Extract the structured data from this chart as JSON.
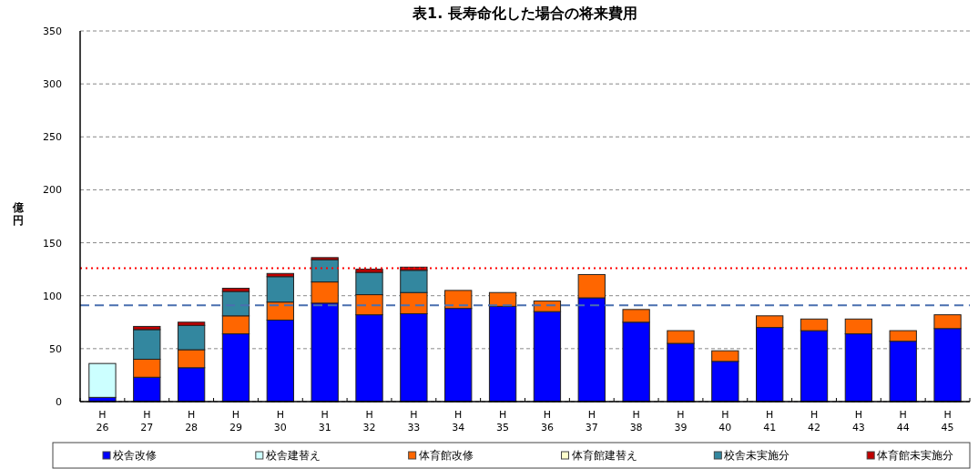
{
  "chart_data": {
    "type": "bar",
    "stacked": true,
    "title": "表1. 長寿命化した場合の将来費用",
    "ylabel": "億円",
    "categories": [
      "H\n26",
      "H\n27",
      "H\n28",
      "H\n29",
      "H\n30",
      "H\n31",
      "H\n32",
      "H\n33",
      "H\n34",
      "H\n35",
      "H\n36",
      "H\n37",
      "H\n38",
      "H\n39",
      "H\n40",
      "H\n41",
      "H\n42",
      "H\n43",
      "H\n44",
      "H\n45"
    ],
    "series": [
      {
        "name": "校舎改修",
        "color": "#0000ff",
        "values": [
          4,
          23,
          32,
          64,
          77,
          93,
          82,
          83,
          88,
          90,
          85,
          98,
          75,
          55,
          38,
          70,
          67,
          64,
          57,
          69
        ]
      },
      {
        "name": "校舎建替え",
        "color": "#ccffff",
        "values": [
          32,
          null,
          null,
          null,
          null,
          null,
          null,
          null,
          null,
          null,
          null,
          null,
          null,
          null,
          null,
          null,
          null,
          null,
          null,
          null
        ]
      },
      {
        "name": "体育館改修",
        "color": "#ff6600",
        "values": [
          null,
          17,
          17,
          17,
          17,
          20,
          19,
          20,
          17,
          13,
          10,
          22,
          12,
          12,
          10,
          11,
          11,
          14,
          10,
          13
        ]
      },
      {
        "name": "体育館建替え",
        "color": "#ffffcc",
        "values": [
          null,
          null,
          null,
          null,
          null,
          null,
          null,
          null,
          null,
          null,
          null,
          null,
          null,
          null,
          null,
          null,
          null,
          null,
          null,
          null
        ]
      },
      {
        "name": "校舎未実施分",
        "color": "#33879f",
        "values": [
          null,
          28,
          23,
          23,
          24,
          21,
          21,
          21,
          null,
          null,
          null,
          null,
          null,
          null,
          null,
          null,
          null,
          null,
          null,
          null
        ]
      },
      {
        "name": "体育館未実施分",
        "color": "#c00000",
        "values": [
          null,
          3,
          3,
          3,
          3,
          2,
          3,
          3,
          null,
          null,
          null,
          null,
          null,
          null,
          null,
          null,
          null,
          null,
          null,
          null
        ]
      }
    ],
    "ylim": [
      0,
      350
    ],
    "yticks": [
      0,
      50,
      100,
      150,
      200,
      250,
      300,
      350
    ],
    "grid": "y",
    "legend": "bottom",
    "ref_lines": [
      {
        "axis": "y",
        "value": 126,
        "color": "#ff0000",
        "line_style": "dotted"
      },
      {
        "axis": "y",
        "value": 91,
        "color": "#4a6fb0",
        "line_style": "dashed"
      }
    ]
  }
}
